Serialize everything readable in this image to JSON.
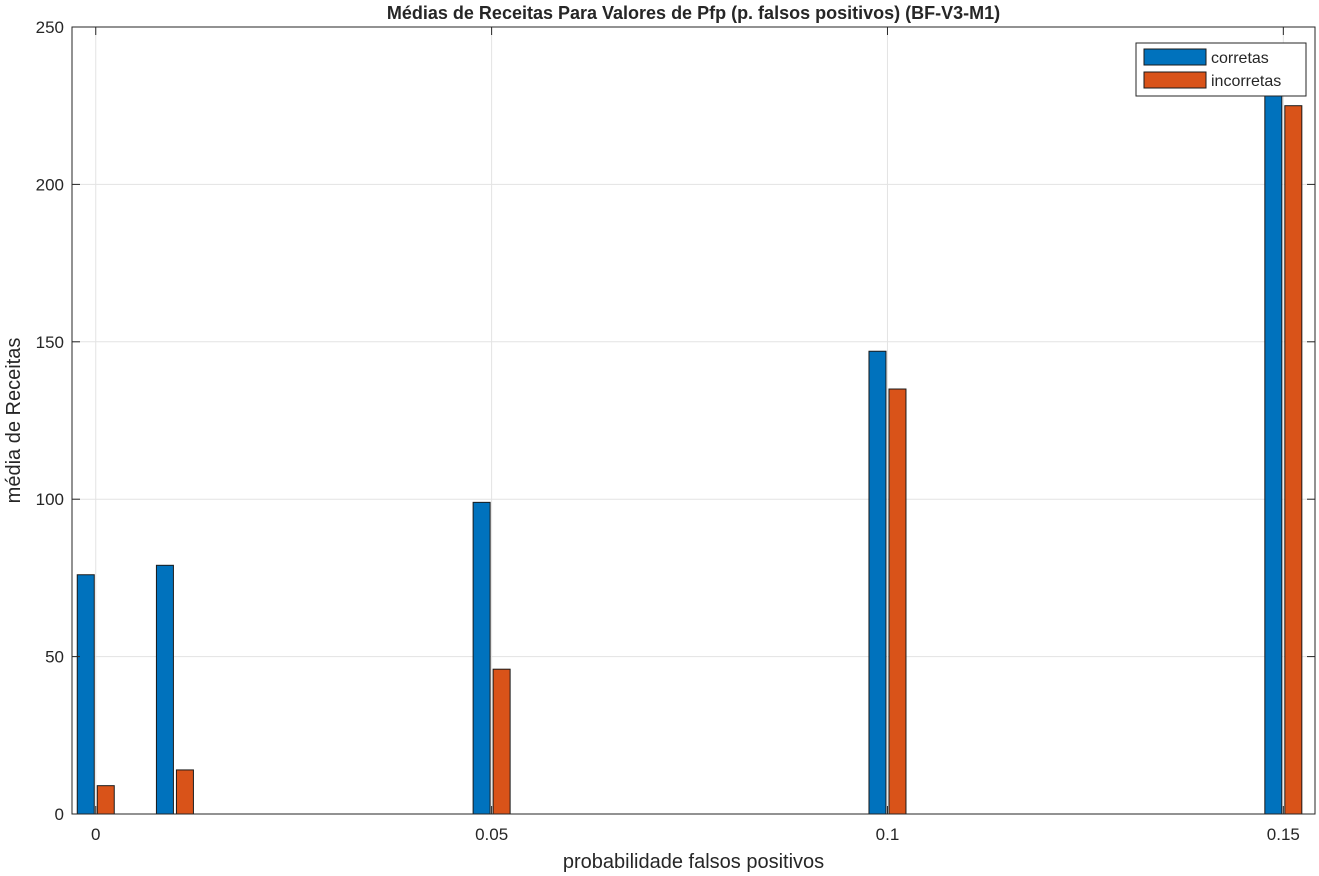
{
  "chart_data": {
    "type": "bar",
    "title": "Médias de Receitas Para Valores de Pfp (p. falsos positivos) (BF-V3-M1)",
    "xlabel": "probabilidade falsos positivos",
    "ylabel": "média de Receitas",
    "x": [
      0,
      0.01,
      0.05,
      0.1,
      0.15
    ],
    "xlim": [
      -0.003,
      0.154
    ],
    "ylim": [
      0,
      250
    ],
    "xticks": [
      0,
      0.05,
      0.1,
      0.15
    ],
    "xtick_labels": [
      "0",
      "0.05",
      "0.1",
      "0.15"
    ],
    "yticks": [
      0,
      50,
      100,
      150,
      200,
      250
    ],
    "ytick_labels": [
      "0",
      "50",
      "100",
      "150",
      "200",
      "250"
    ],
    "grid": true,
    "legend_position": "top-right",
    "series": [
      {
        "name": "corretas",
        "color": "#0072BD",
        "values": [
          76,
          79,
          99,
          147,
          229
        ]
      },
      {
        "name": "incorretas",
        "color": "#D95319",
        "values": [
          9,
          14,
          46,
          135,
          225
        ]
      }
    ]
  }
}
